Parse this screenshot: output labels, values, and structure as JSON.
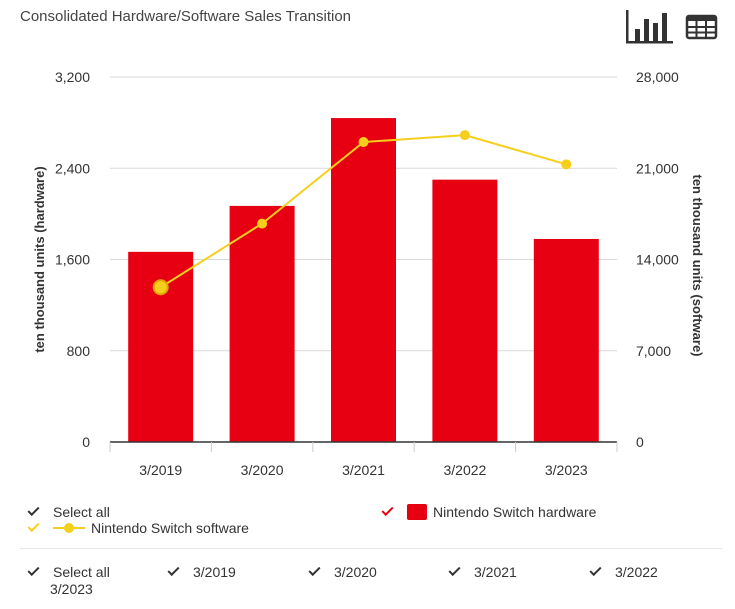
{
  "title": "Consolidated Hardware/Software Sales Transition",
  "toolbar": {
    "chart_icon": "bar-chart-icon",
    "table_icon": "table-grid-icon"
  },
  "colors": {
    "hardware": "#e60012",
    "software": "#f6cf1d",
    "grid": "#d9d9d9",
    "axis": "#333333"
  },
  "legend": {
    "select_all": "Select all",
    "hardware": "Nintendo Switch hardware",
    "software": "Nintendo Switch software"
  },
  "filters": {
    "select_all": "Select all",
    "items": [
      "3/2019",
      "3/2020",
      "3/2021",
      "3/2022",
      "3/2023"
    ]
  },
  "chart_data": {
    "type": "bar",
    "categories": [
      "3/2019",
      "3/2020",
      "3/2021",
      "3/2022",
      "3/2023"
    ],
    "series": [
      {
        "name": "Nintendo Switch hardware",
        "type": "bar",
        "axis": "left",
        "values": [
          1667,
          2070,
          2840,
          2300,
          1780
        ]
      },
      {
        "name": "Nintendo Switch software",
        "type": "line",
        "axis": "right",
        "values": [
          11869,
          16753,
          23010,
          23540,
          21300
        ]
      }
    ],
    "ylabel": "ten thousand units (hardware)",
    "y2label": "ten thousand units (software)",
    "ylim": [
      0,
      3200
    ],
    "y2lim": [
      0,
      28000
    ],
    "yticks": [
      "0",
      "800",
      "1,600",
      "2,400",
      "3,200"
    ],
    "y2ticks": [
      "0",
      "7,000",
      "14,000",
      "21,000",
      "28,000"
    ],
    "grid": true,
    "legend_position": "bottom",
    "highlighted_point": "3/2019"
  }
}
